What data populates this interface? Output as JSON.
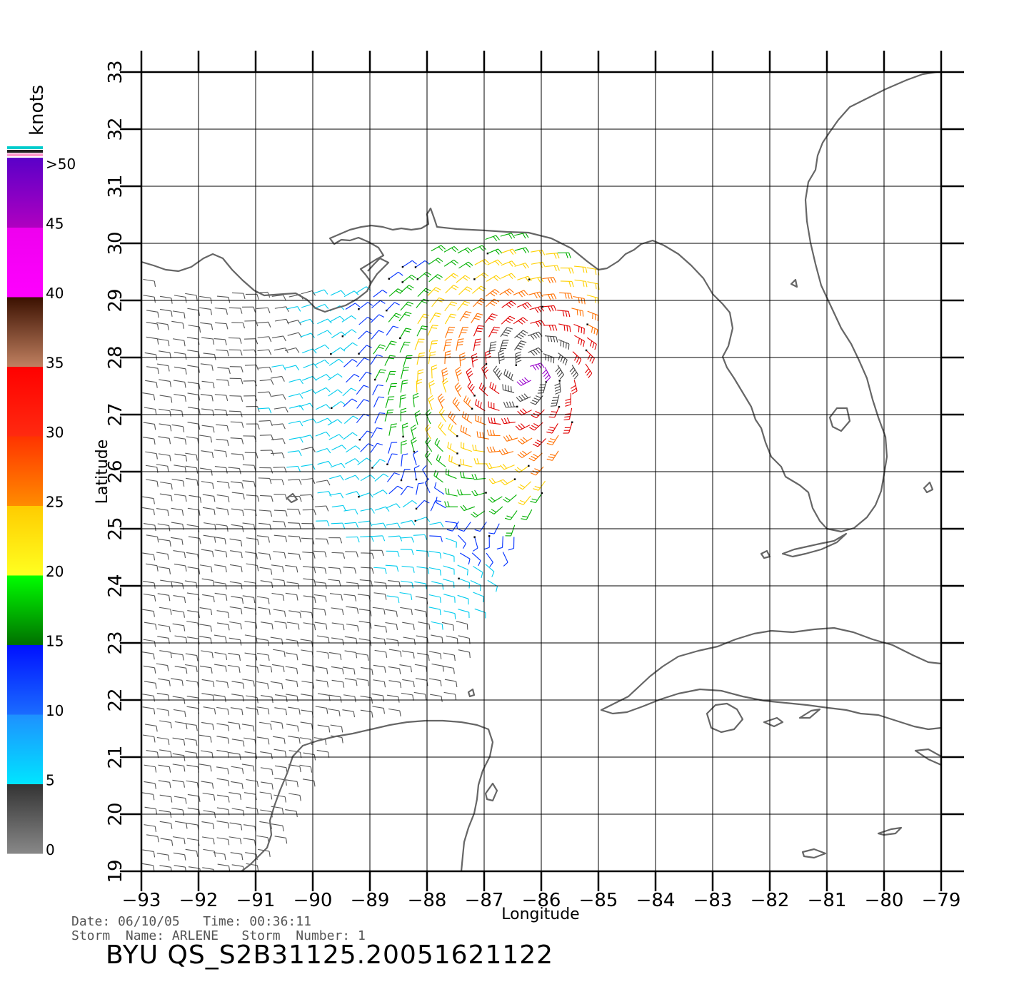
{
  "colorbar": {
    "unit": "knots",
    "labels": [
      ">50",
      "45",
      "40",
      "35",
      "30",
      "25",
      "20",
      "15",
      "10",
      "5",
      "0"
    ],
    "bands": [
      {
        "label": "0-5",
        "top": "#333333",
        "bottom": "#888888"
      },
      {
        "label": "5-10",
        "top": "#1e90ff",
        "bottom": "#00e5ff"
      },
      {
        "label": "10-15",
        "top": "#0010ff",
        "bottom": "#1a6cff"
      },
      {
        "label": "15-20",
        "top": "#00ff00",
        "bottom": "#007000"
      },
      {
        "label": "20-25",
        "top": "#ffcc00",
        "bottom": "#ffff20"
      },
      {
        "label": "25-30",
        "top": "#ff3300",
        "bottom": "#ff8c00"
      },
      {
        "label": "30-35",
        "top": "#ff0000",
        "bottom": "#ff2a10"
      },
      {
        "label": "35-40",
        "top": "#3a1000",
        "bottom": "#c08060"
      },
      {
        "label": "40-45",
        "top": "#ee00ee",
        "bottom": "#ff00ff"
      },
      {
        "label": "45-50",
        "top": "#5a00c8",
        "bottom": "#b000c0"
      }
    ],
    "top_stripes": [
      "#00cccc",
      "#222222",
      "#ff99cc"
    ]
  },
  "map": {
    "x_axis_title": "Longitude",
    "y_axis_title": "Latitude",
    "lon_ticks": [
      "-93",
      "-92",
      "-91",
      "-90",
      "-89",
      "-88",
      "-87",
      "-86",
      "-85",
      "-84",
      "-83",
      "-82",
      "-81",
      "-80",
      "-79"
    ],
    "lat_ticks": [
      "19",
      "20",
      "21",
      "22",
      "23",
      "24",
      "25",
      "26",
      "27",
      "28",
      "29",
      "30",
      "31",
      "32",
      "33"
    ],
    "lon_range": [
      -93,
      -79
    ],
    "lat_range": [
      19,
      33
    ],
    "coastline_color": "#666666",
    "grid": true
  },
  "footer": {
    "line1": "Date: 06/10/05   Time: 00:36:11",
    "line2": "Storm  Name: ARLENE   Storm  Number: 1",
    "title": "BYU  QS_S2B31125.20051621122"
  },
  "wind_field": {
    "storm_center": {
      "lon": -86.2,
      "lat": 27.8
    },
    "max_speed_knots": 42,
    "color_scale_knots": [
      0,
      5,
      10,
      15,
      20,
      25,
      30,
      35,
      40,
      45,
      50
    ]
  }
}
